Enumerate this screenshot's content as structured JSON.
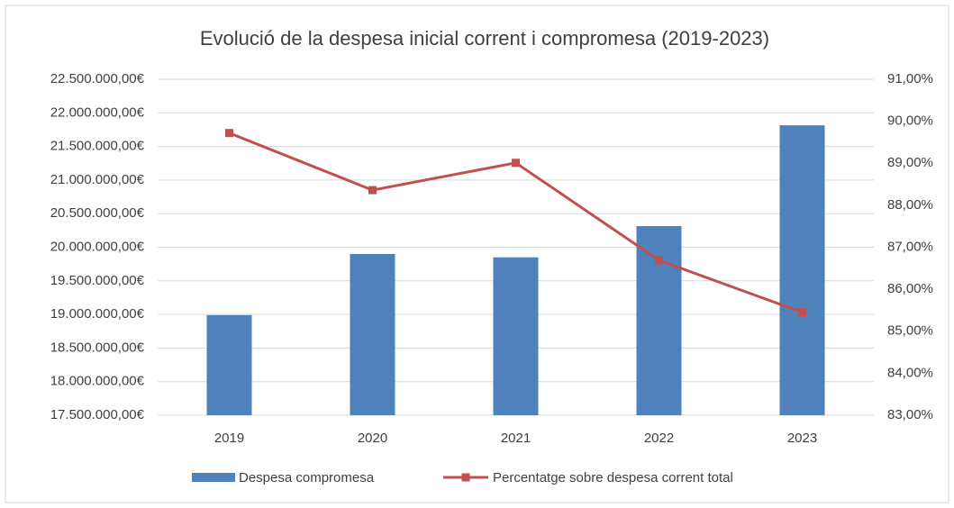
{
  "chart_data": {
    "type": "bar-line",
    "title": "Evolució de la despesa inicial corrent i compromesa (2019-2023)",
    "categories": [
      "2019",
      "2020",
      "2021",
      "2022",
      "2023"
    ],
    "series": [
      {
        "name": "Despesa compromesa",
        "type": "bar",
        "color": "#4f81bd",
        "values": [
          18990000,
          19900000,
          19850000,
          20315000,
          21815000
        ]
      },
      {
        "name": "Percentatge sobre despesa corrent total",
        "type": "line",
        "axis": "y2",
        "color": "#c0504d",
        "values": [
          89.72,
          88.36,
          89.01,
          86.69,
          85.45
        ]
      }
    ],
    "ylim": [
      17500000,
      22500000
    ],
    "yticks": [
      {
        "value": 17500000,
        "label": "17.500.000,00€"
      },
      {
        "value": 18000000,
        "label": "18.000.000,00€"
      },
      {
        "value": 18500000,
        "label": "18.500.000,00€"
      },
      {
        "value": 19000000,
        "label": "19.000.000,00€"
      },
      {
        "value": 19500000,
        "label": "19.500.000,00€"
      },
      {
        "value": 20000000,
        "label": "20.000.000,00€"
      },
      {
        "value": 20500000,
        "label": "20.500.000,00€"
      },
      {
        "value": 21000000,
        "label": "21.000.000,00€"
      },
      {
        "value": 21500000,
        "label": "21.500.000,00€"
      },
      {
        "value": 22000000,
        "label": "22.000.000,00€"
      },
      {
        "value": 22500000,
        "label": "22.500.000,00€"
      }
    ],
    "y2lim": [
      83,
      91
    ],
    "y2ticks": [
      {
        "value": 83,
        "label": "83,00%"
      },
      {
        "value": 84,
        "label": "84,00%"
      },
      {
        "value": 85,
        "label": "85,00%"
      },
      {
        "value": 86,
        "label": "86,00%"
      },
      {
        "value": 87,
        "label": "87,00%"
      },
      {
        "value": 88,
        "label": "88,00%"
      },
      {
        "value": 89,
        "label": "89,00%"
      },
      {
        "value": 90,
        "label": "90,00%"
      },
      {
        "value": 91,
        "label": "91,00%"
      }
    ],
    "grid": true,
    "legend": "bottom"
  }
}
